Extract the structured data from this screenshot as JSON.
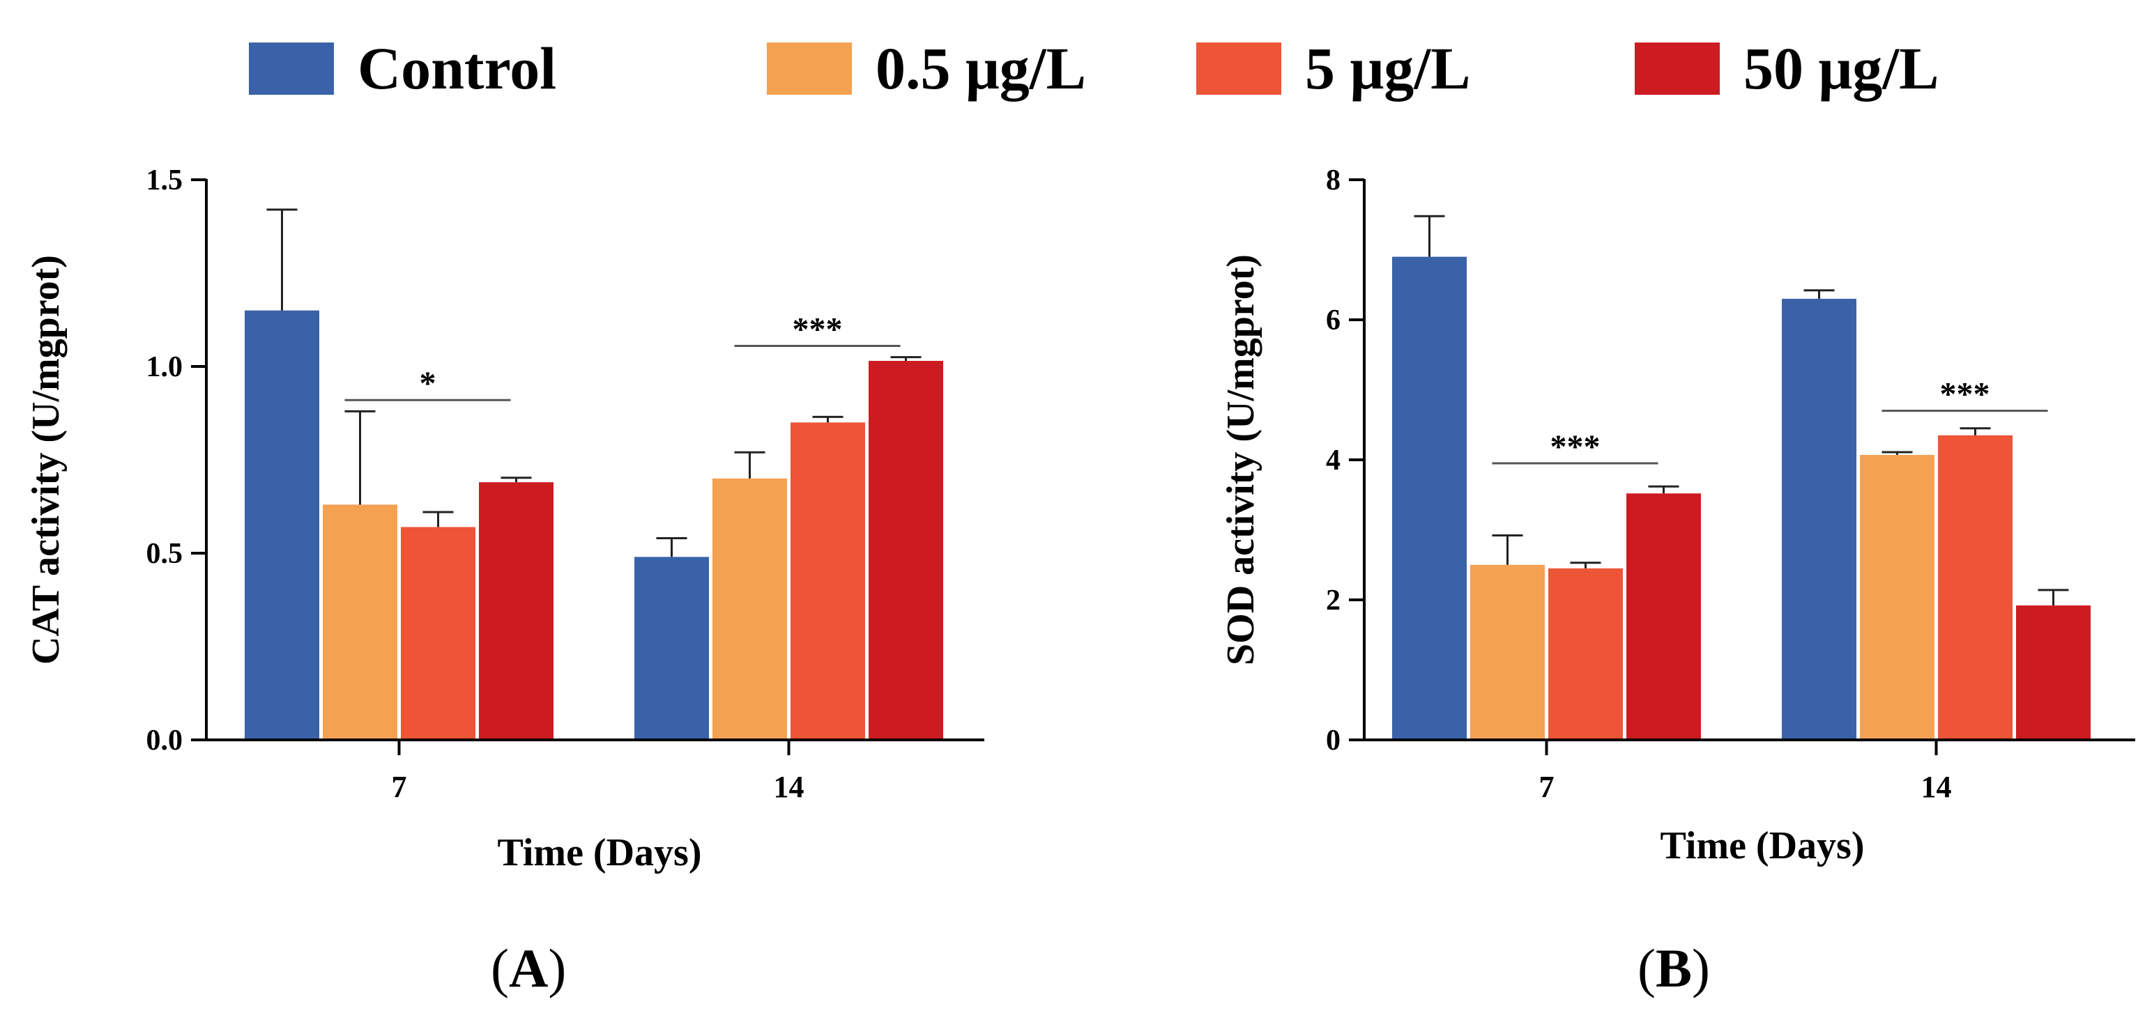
{
  "legend": {
    "items": [
      {
        "label": "Control",
        "color": "#3a62a8"
      },
      {
        "label": "0.5 μg/L",
        "color": "#f4a152"
      },
      {
        "label": "5 μg/L",
        "color": "#ee5536"
      },
      {
        "label": "50 μg/L",
        "color": "#cc1c22"
      }
    ]
  },
  "panels": {
    "a": {
      "open": "(",
      "letter": "A",
      "close": ")"
    },
    "b": {
      "open": "(",
      "letter": "B",
      "close": ")"
    }
  },
  "chart_data": [
    {
      "type": "bar",
      "title": "",
      "xlabel": "Time (Days)",
      "ylabel": "CAT activity  (U/mgprot)",
      "categories": [
        "7",
        "14"
      ],
      "ylim": [
        0,
        1.5
      ],
      "yticks": [
        0.0,
        0.5,
        1.0,
        1.5
      ],
      "ytick_labels": [
        "0.0",
        "0.5",
        "1.0",
        "1.5"
      ],
      "series": [
        {
          "name": "Control",
          "values": [
            1.15,
            0.49
          ],
          "errors": [
            0.27,
            0.05
          ]
        },
        {
          "name": "0.5 μg/L",
          "values": [
            0.63,
            0.7
          ],
          "errors": [
            0.25,
            0.07
          ]
        },
        {
          "name": "5 μg/L",
          "values": [
            0.57,
            0.85
          ],
          "errors": [
            0.04,
            0.015
          ]
        },
        {
          "name": "50 μg/L",
          "values": [
            0.69,
            1.015
          ],
          "errors": [
            0.012,
            0.01
          ]
        }
      ],
      "annotations": [
        {
          "text": "*",
          "category": 0,
          "from_series": 1,
          "to_series": 3,
          "y": 0.91
        },
        {
          "text": "***",
          "category": 1,
          "from_series": 1,
          "to_series": 3,
          "y": 1.055
        }
      ]
    },
    {
      "type": "bar",
      "title": "",
      "xlabel": "Time (Days)",
      "ylabel": "SOD activity  (U/mgprot)",
      "categories": [
        "7",
        "14"
      ],
      "ylim": [
        0,
        8
      ],
      "yticks": [
        0,
        2,
        4,
        6,
        8
      ],
      "ytick_labels": [
        "0",
        "2",
        "4",
        "6",
        "8"
      ],
      "series": [
        {
          "name": "Control",
          "values": [
            6.9,
            6.3
          ],
          "errors": [
            0.58,
            0.12
          ]
        },
        {
          "name": "0.5 μg/L",
          "values": [
            2.5,
            4.07
          ],
          "errors": [
            0.42,
            0.04
          ]
        },
        {
          "name": "5 μg/L",
          "values": [
            2.45,
            4.35
          ],
          "errors": [
            0.08,
            0.1
          ]
        },
        {
          "name": "50 μg/L",
          "values": [
            3.52,
            1.92
          ],
          "errors": [
            0.1,
            0.22
          ]
        }
      ],
      "annotations": [
        {
          "text": "***",
          "category": 0,
          "from_series": 1,
          "to_series": 3,
          "y": 3.95
        },
        {
          "text": "***",
          "category": 1,
          "from_series": 1,
          "to_series": 3,
          "y": 4.7
        }
      ]
    }
  ]
}
